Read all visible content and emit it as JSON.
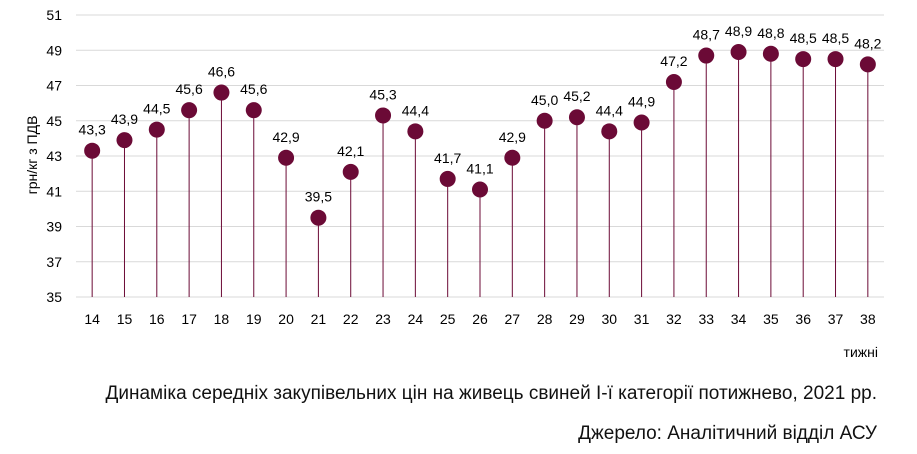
{
  "chart_data": {
    "type": "lollipop",
    "x": [
      14,
      15,
      16,
      17,
      18,
      19,
      20,
      21,
      22,
      23,
      24,
      25,
      26,
      27,
      28,
      29,
      30,
      31,
      32,
      33,
      34,
      35,
      36,
      37,
      38
    ],
    "values": [
      43.3,
      43.9,
      44.5,
      45.6,
      46.6,
      45.6,
      42.9,
      39.5,
      42.1,
      45.3,
      44.4,
      41.7,
      41.1,
      42.9,
      45.0,
      45.2,
      44.4,
      44.9,
      47.2,
      48.7,
      48.9,
      48.8,
      48.5,
      48.5,
      48.2
    ],
    "data_labels": [
      "43,3",
      "43,9",
      "44,5",
      "45,6",
      "46,6",
      "45,6",
      "42,9",
      "39,5",
      "42,1",
      "45,3",
      "44,4",
      "41,7",
      "41,1",
      "42,9",
      "45,0",
      "45,2",
      "44,4",
      "44,9",
      "47,2",
      "48,7",
      "48,9",
      "48,8",
      "48,5",
      "48,5",
      "48,2"
    ],
    "ylim": [
      35,
      51
    ],
    "yticks": [
      35,
      37,
      39,
      41,
      43,
      45,
      47,
      49,
      51
    ],
    "ylabel": "грн/кг з ПДВ",
    "xlabel": "тижні",
    "grid": true,
    "marker_color": "#6b0a36",
    "stem_color": "#6b0a36"
  },
  "captions": {
    "title": "Динаміка середніх закупівельних цін на живець свиней І-ї категорії потижнево, 2021 рр.",
    "source": "Джерело: Аналітичний відділ АСУ"
  }
}
